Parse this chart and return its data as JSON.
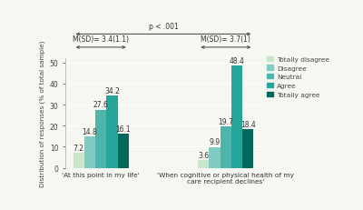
{
  "groups": [
    "'At this point in my life'",
    "'When cognitive or physical health of my\ncare recipient declines'"
  ],
  "categories": [
    "Totally disagree",
    "Disagree",
    "Neutral",
    "Agree",
    "Totally agree"
  ],
  "colors": [
    "#c8e6c9",
    "#80cbc4",
    "#4db6ac",
    "#26a69a",
    "#00695c"
  ],
  "group1_values": [
    7.2,
    14.8,
    27.6,
    34.2,
    16.1
  ],
  "group2_values": [
    3.6,
    9.9,
    19.7,
    48.4,
    18.4
  ],
  "ylabel": "Distribution of responses (% of total sample)",
  "ylim": [
    0,
    52
  ],
  "yticks": [
    0,
    10,
    20,
    30,
    40,
    50
  ],
  "mean_sd_group1": "M(SD)= 3.4(1.1)",
  "mean_sd_group2": "M(SD)= 3.7(1)",
  "pvalue_text": "p < .001",
  "background_color": "#f7f7f2"
}
